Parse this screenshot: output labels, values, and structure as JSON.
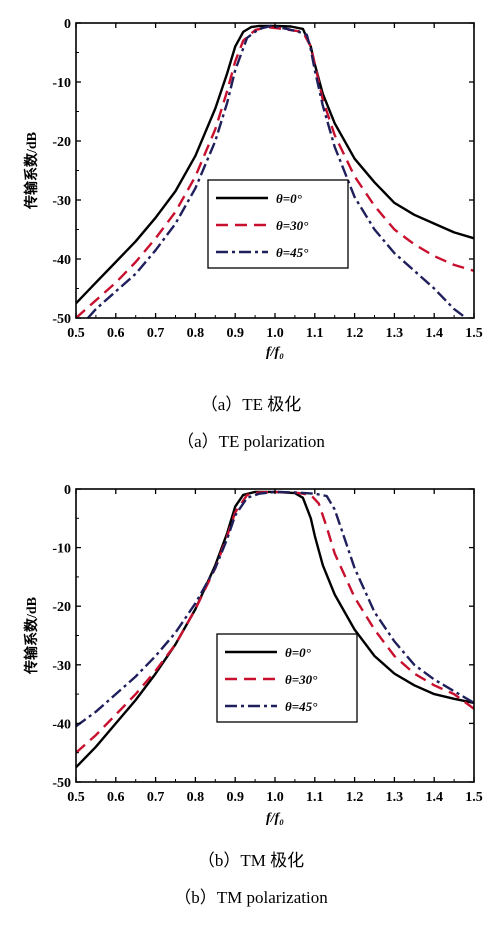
{
  "chart_data": [
    {
      "type": "line",
      "xlabel": "f/f₀",
      "ylabel": "传输系数/dB",
      "xlim": [
        0.5,
        1.5
      ],
      "ylim": [
        -50,
        0
      ],
      "xticks": [
        "0.5",
        "0.6",
        "0.7",
        "0.8",
        "0.9",
        "1.0",
        "1.1",
        "1.2",
        "1.3",
        "1.4",
        "1.5"
      ],
      "yticks": [
        "0",
        "-10",
        "-20",
        "-30",
        "-40",
        "-50"
      ],
      "legend": "center-right",
      "grid": false,
      "caption_cn": "（a）TE 极化",
      "caption_en": "（a）TE polarization",
      "series": [
        {
          "name": "θ=0°",
          "color": "#000000",
          "dash": "solid",
          "x": [
            0.5,
            0.55,
            0.6,
            0.65,
            0.7,
            0.75,
            0.8,
            0.85,
            0.88,
            0.9,
            0.92,
            0.94,
            0.96,
            1.0,
            1.04,
            1.07,
            1.09,
            1.1,
            1.12,
            1.15,
            1.2,
            1.25,
            1.3,
            1.35,
            1.4,
            1.45,
            1.5
          ],
          "y": [
            -47.5,
            -44,
            -40.5,
            -37,
            -33,
            -28.5,
            -22.5,
            -14.5,
            -8.5,
            -4,
            -1.5,
            -0.7,
            -0.5,
            -0.5,
            -0.6,
            -1,
            -4,
            -7,
            -12,
            -17,
            -23,
            -27,
            -30.5,
            -32.5,
            -34,
            -35.5,
            -36.5
          ]
        },
        {
          "name": "θ=30°",
          "color": "#c8102e",
          "dash": "dash",
          "x": [
            0.5,
            0.55,
            0.6,
            0.65,
            0.7,
            0.75,
            0.8,
            0.85,
            0.88,
            0.9,
            0.92,
            0.95,
            0.98,
            1.02,
            1.05,
            1.07,
            1.09,
            1.1,
            1.12,
            1.15,
            1.2,
            1.25,
            1.3,
            1.35,
            1.4,
            1.45,
            1.5
          ],
          "y": [
            -50,
            -47,
            -44,
            -40.5,
            -36.5,
            -32,
            -26,
            -18,
            -11.5,
            -6.5,
            -3,
            -1.2,
            -0.7,
            -1,
            -1.3,
            -1.5,
            -4,
            -7,
            -13,
            -19,
            -26,
            -31,
            -35,
            -37.5,
            -39.5,
            -41,
            -42
          ]
        },
        {
          "name": "θ=45°",
          "color": "#1f1f5c",
          "dash": "dashdot",
          "x": [
            0.53,
            0.55,
            0.6,
            0.65,
            0.7,
            0.75,
            0.8,
            0.85,
            0.88,
            0.9,
            0.93,
            0.96,
            0.99,
            1.03,
            1.06,
            1.08,
            1.09,
            1.1,
            1.12,
            1.15,
            1.2,
            1.25,
            1.3,
            1.35,
            1.4,
            1.45,
            1.48
          ],
          "y": [
            -50,
            -48.5,
            -45.5,
            -42.5,
            -38.5,
            -34,
            -28,
            -20,
            -13.5,
            -8,
            -2.5,
            -1,
            -0.5,
            -1,
            -1.5,
            -2,
            -4.5,
            -8,
            -14,
            -21,
            -29.5,
            -35,
            -39,
            -42,
            -45,
            -48.5,
            -50
          ]
        }
      ]
    },
    {
      "type": "line",
      "xlabel": "f/f₀",
      "ylabel": "传输系数/dB",
      "xlim": [
        0.5,
        1.5
      ],
      "ylim": [
        -50,
        0
      ],
      "xticks": [
        "0.5",
        "0.6",
        "0.7",
        "0.8",
        "0.9",
        "1.0",
        "1.1",
        "1.2",
        "1.3",
        "1.4",
        "1.5"
      ],
      "yticks": [
        "0",
        "-10",
        "-20",
        "-30",
        "-40",
        "-50"
      ],
      "legend": "center-right",
      "grid": false,
      "caption_cn": "（b）TM 极化",
      "caption_en": "（b）TM polarization",
      "series": [
        {
          "name": "θ=0°",
          "color": "#000000",
          "dash": "solid",
          "x": [
            0.5,
            0.55,
            0.6,
            0.65,
            0.7,
            0.75,
            0.8,
            0.85,
            0.88,
            0.9,
            0.92,
            0.95,
            1.0,
            1.05,
            1.07,
            1.09,
            1.1,
            1.12,
            1.15,
            1.2,
            1.25,
            1.3,
            1.35,
            1.4,
            1.45,
            1.5
          ],
          "y": [
            -47.5,
            -44,
            -40,
            -36,
            -31.5,
            -26.5,
            -20.5,
            -13,
            -7.5,
            -3,
            -1,
            -0.5,
            -0.5,
            -0.7,
            -1.5,
            -5,
            -8,
            -13,
            -18,
            -24,
            -28.5,
            -31.5,
            -33.5,
            -35,
            -35.8,
            -36.5
          ]
        },
        {
          "name": "θ=30°",
          "color": "#c8102e",
          "dash": "dash",
          "x": [
            0.5,
            0.55,
            0.6,
            0.65,
            0.7,
            0.75,
            0.8,
            0.85,
            0.88,
            0.9,
            0.93,
            0.96,
            1.0,
            1.05,
            1.09,
            1.11,
            1.13,
            1.15,
            1.2,
            1.25,
            1.3,
            1.35,
            1.4,
            1.45,
            1.5
          ],
          "y": [
            -45,
            -42,
            -38.5,
            -35,
            -31,
            -26.5,
            -20.5,
            -13.5,
            -8,
            -4,
            -1,
            -0.6,
            -0.5,
            -0.6,
            -1,
            -2.5,
            -6.5,
            -11,
            -18.5,
            -24,
            -28.5,
            -31.5,
            -33.5,
            -35,
            -37.5
          ]
        },
        {
          "name": "θ=45°",
          "color": "#1f1f5c",
          "dash": "dashdot",
          "x": [
            0.5,
            0.55,
            0.6,
            0.65,
            0.7,
            0.75,
            0.8,
            0.85,
            0.88,
            0.9,
            0.93,
            0.96,
            1.0,
            1.05,
            1.1,
            1.13,
            1.15,
            1.17,
            1.2,
            1.25,
            1.3,
            1.35,
            1.4,
            1.45,
            1.5
          ],
          "y": [
            -40.5,
            -38,
            -35,
            -32,
            -28.5,
            -24.5,
            -19.5,
            -13.5,
            -8.5,
            -4.5,
            -1.5,
            -0.8,
            -0.5,
            -0.6,
            -0.8,
            -1.2,
            -3.5,
            -7.5,
            -13.5,
            -21,
            -26,
            -30,
            -32.5,
            -34.5,
            -36.5
          ]
        }
      ]
    }
  ]
}
